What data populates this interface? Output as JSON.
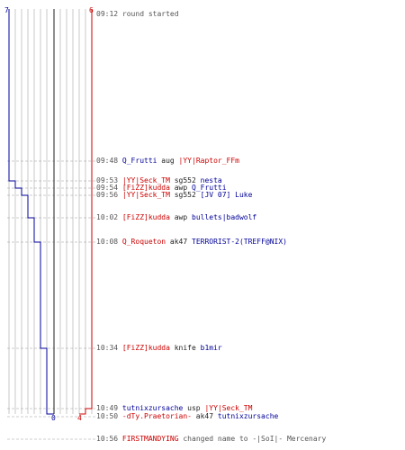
{
  "score": {
    "blue_start": "7",
    "red_start": "6",
    "blue_end": "0",
    "red_end": "4"
  },
  "colors": {
    "blue": "#000099",
    "red": "#cc0000",
    "grid": "#bbbbbb",
    "dashed": "#999999",
    "center": "#444444",
    "text": "#555555"
  },
  "events": [
    {
      "time": "09:12",
      "parts": [
        {
          "text": "round started",
          "cls": "gray"
        }
      ]
    },
    {
      "time": "09:48",
      "parts": [
        {
          "text": "Q_Frutti",
          "cls": "blue"
        },
        {
          "text": " aug ",
          "cls": "dark"
        },
        {
          "text": "|YY|Raptor_FFm",
          "cls": "red"
        }
      ]
    },
    {
      "time": "09:53",
      "parts": [
        {
          "text": "|YY|Seck_TM",
          "cls": "red"
        },
        {
          "text": " sg552 ",
          "cls": "dark"
        },
        {
          "text": "nesta",
          "cls": "blue"
        }
      ]
    },
    {
      "time": "09:54",
      "parts": [
        {
          "text": "[FiZZ]kudda",
          "cls": "red"
        },
        {
          "text": " awp ",
          "cls": "dark"
        },
        {
          "text": "Q_Frutti",
          "cls": "blue"
        }
      ]
    },
    {
      "time": "09:56",
      "parts": [
        {
          "text": "|YY|Seck_TM",
          "cls": "red"
        },
        {
          "text": " sg552 ",
          "cls": "dark"
        },
        {
          "text": "[JV 07] Luke",
          "cls": "blue"
        }
      ]
    },
    {
      "time": "10:02",
      "parts": [
        {
          "text": "[FiZZ]kudda",
          "cls": "red"
        },
        {
          "text": " awp ",
          "cls": "dark"
        },
        {
          "text": "bullets|badwolf",
          "cls": "blue"
        }
      ]
    },
    {
      "time": "10:08",
      "parts": [
        {
          "text": "Q_Roqueton",
          "cls": "red"
        },
        {
          "text": " ak47 ",
          "cls": "dark"
        },
        {
          "text": "TERRORIST-2(TREFF@NIX)",
          "cls": "blue"
        }
      ]
    },
    {
      "time": "10:34",
      "parts": [
        {
          "text": "[FiZZ]kudda",
          "cls": "red"
        },
        {
          "text": " knife ",
          "cls": "dark"
        },
        {
          "text": "b1mir",
          "cls": "blue"
        }
      ]
    },
    {
      "time": "10:49",
      "parts": [
        {
          "text": "tutnixzursache",
          "cls": "blue"
        },
        {
          "text": " usp ",
          "cls": "dark"
        },
        {
          "text": "|YY|Seck_TM",
          "cls": "red"
        }
      ]
    },
    {
      "time": "10:50",
      "parts": [
        {
          "text": "-dTy.Praetorian-",
          "cls": "red"
        },
        {
          "text": " ak47 ",
          "cls": "dark"
        },
        {
          "text": "tutnixzursache",
          "cls": "blue"
        }
      ]
    },
    {
      "time": "10:56",
      "parts": [
        {
          "text": "FIRSTMANDYING",
          "cls": "red"
        },
        {
          "text": " changed name to -|SoI|- Mercenary",
          "cls": "gray"
        }
      ]
    }
  ]
}
